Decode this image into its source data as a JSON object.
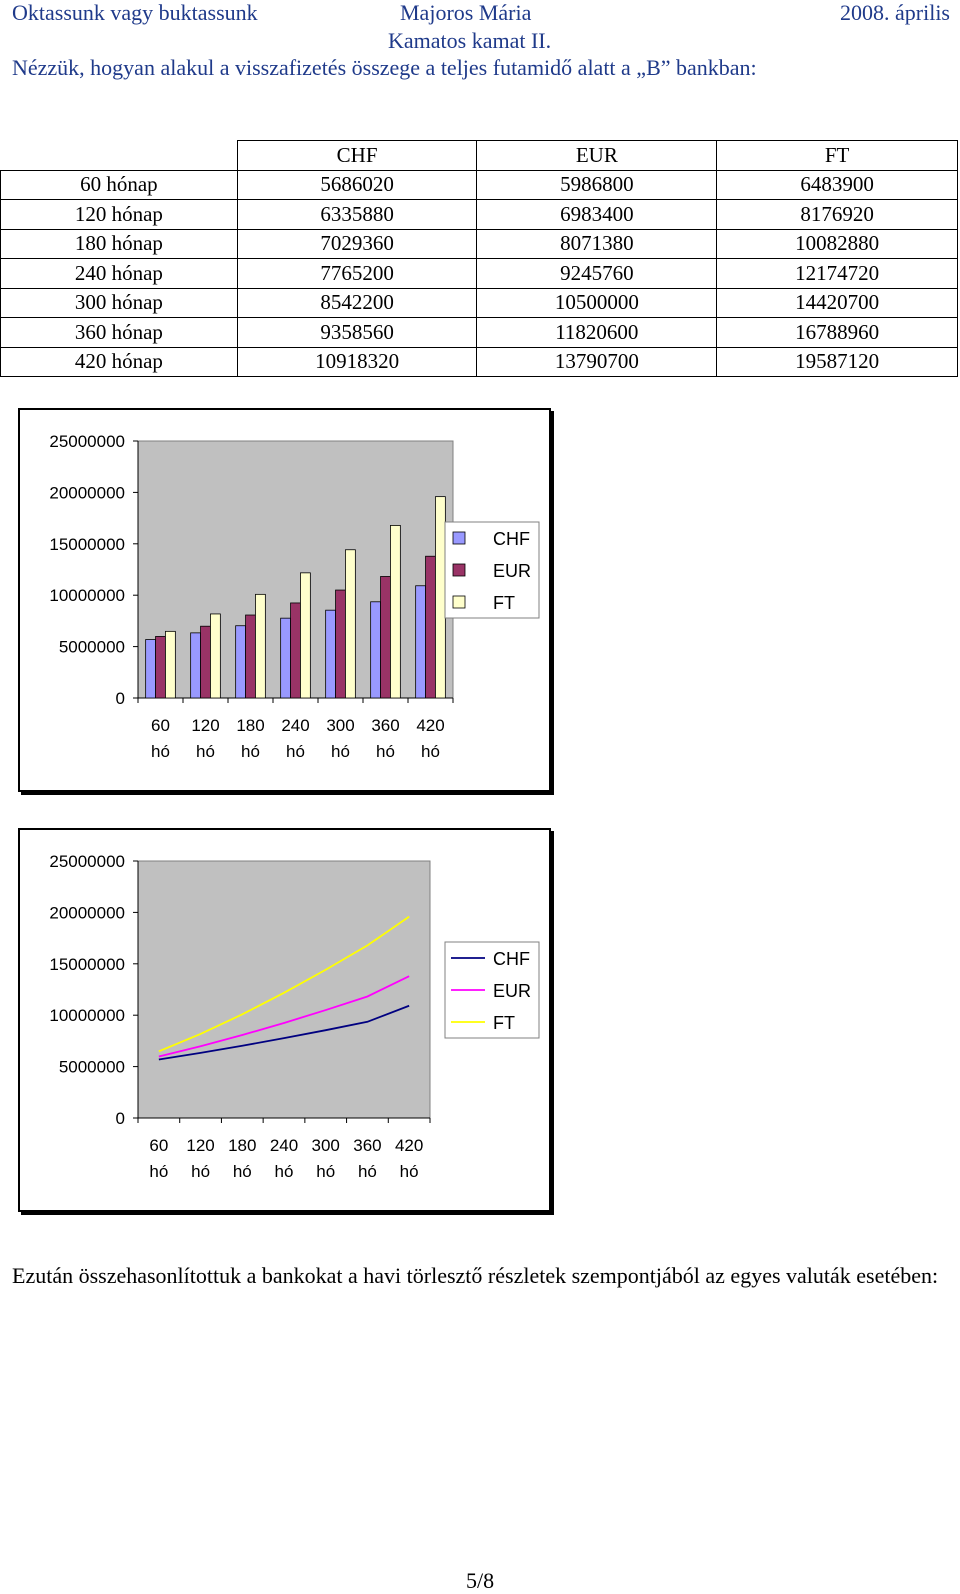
{
  "header": {
    "left": "Oktassunk vagy buktassunk",
    "center": "Majoros Mária",
    "right": "2008. április",
    "subtitle": "Kamatos kamat II."
  },
  "intro": "Nézzük, hogyan alakul a visszafizetés összege a teljes futamidő alatt a „B” bankban:",
  "table": {
    "columns": [
      "CHF",
      "EUR",
      "FT"
    ],
    "rows": [
      {
        "label": "60 hónap",
        "values": [
          "5686020",
          "5986800",
          "6483900"
        ]
      },
      {
        "label": "120 hónap",
        "values": [
          "6335880",
          "6983400",
          "8176920"
        ]
      },
      {
        "label": "180 hónap",
        "values": [
          "7029360",
          "8071380",
          "10082880"
        ]
      },
      {
        "label": "240 hónap",
        "values": [
          "7765200",
          "9245760",
          "12174720"
        ]
      },
      {
        "label": "300 hónap",
        "values": [
          "8542200",
          "10500000",
          "14420700"
        ]
      },
      {
        "label": "360 hónap",
        "values": [
          "9358560",
          "11820600",
          "16788960"
        ]
      },
      {
        "label": "420 hónap",
        "values": [
          "10918320",
          "13790700",
          "19587120"
        ]
      }
    ]
  },
  "chart_data": [
    {
      "type": "bar",
      "categories": [
        "60 hó",
        "120 hó",
        "180 hó",
        "240 hó",
        "300 hó",
        "360 hó",
        "420 hó"
      ],
      "series": [
        {
          "name": "CHF",
          "values": [
            5686020,
            6335880,
            7029360,
            7765200,
            8542200,
            9358560,
            10918320
          ],
          "color": "#9999ff"
        },
        {
          "name": "EUR",
          "values": [
            5986800,
            6983400,
            8071380,
            9245760,
            10500000,
            11820600,
            13790700
          ],
          "color": "#993366"
        },
        {
          "name": "FT",
          "values": [
            6483900,
            8176920,
            10082880,
            12174720,
            14420700,
            16788960,
            19587120
          ],
          "color": "#ffffcc"
        }
      ],
      "yticks": [
        "0",
        "5000000",
        "10000000",
        "15000000",
        "20000000",
        "25000000"
      ],
      "ylim": [
        0,
        25000000
      ],
      "grid": false,
      "plot_background": "#c0c0c0",
      "legend": "right"
    },
    {
      "type": "line",
      "categories": [
        "60 hó",
        "120 hó",
        "180 hó",
        "240 hó",
        "300 hó",
        "360 hó",
        "420 hó"
      ],
      "series": [
        {
          "name": "CHF",
          "values": [
            5686020,
            6335880,
            7029360,
            7765200,
            8542200,
            9358560,
            10918320
          ],
          "color": "#000080"
        },
        {
          "name": "EUR",
          "values": [
            5986800,
            6983400,
            8071380,
            9245760,
            10500000,
            11820600,
            13790700
          ],
          "color": "#ff00ff"
        },
        {
          "name": "FT",
          "values": [
            6483900,
            8176920,
            10082880,
            12174720,
            14420700,
            16788960,
            19587120
          ],
          "color": "#ffff00"
        }
      ],
      "yticks": [
        "0",
        "5000000",
        "10000000",
        "15000000",
        "20000000",
        "25000000"
      ],
      "ylim": [
        0,
        25000000
      ],
      "grid": false,
      "plot_background": "#c0c0c0",
      "legend": "right"
    }
  ],
  "paragraph": "Ezután összehasonlítottuk a bankokat a havi törlesztő részletek szempontjából az egyes valuták esetében:",
  "page_number": "5/8"
}
